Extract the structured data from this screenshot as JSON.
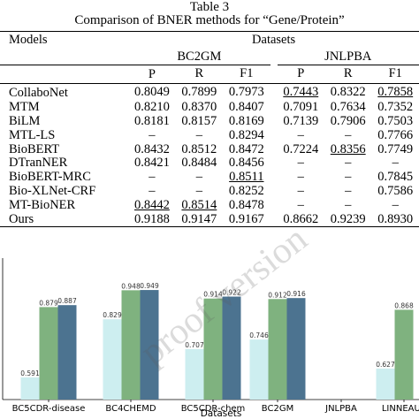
{
  "caption": {
    "number": "Table 3",
    "title": "Comparison of BNER methods for “Gene/Protein”"
  },
  "table": {
    "models_header": "Models",
    "datasets_header": "Datasets",
    "groups": [
      "BC2GM",
      "JNLPBA"
    ],
    "metrics": [
      "P",
      "R",
      "F1",
      "P",
      "R",
      "F1"
    ],
    "rows": [
      {
        "model": "CollaboNet",
        "cells": [
          "0.8049",
          "0.7899",
          "0.7973",
          "0.7443",
          "0.8322",
          "0.7858"
        ],
        "underline": [
          3,
          5
        ],
        "bold": false
      },
      {
        "model": "MTM",
        "cells": [
          "0.8210",
          "0.8370",
          "0.8407",
          "0.7091",
          "0.7634",
          "0.7352"
        ],
        "underline": [],
        "bold": false
      },
      {
        "model": "BiLM",
        "cells": [
          "0.8181",
          "0.8157",
          "0.8169",
          "0.7139",
          "0.7906",
          "0.7503"
        ],
        "underline": [],
        "bold": false
      },
      {
        "model": "MTL-LS",
        "cells": [
          "–",
          "–",
          "0.8294",
          "–",
          "–",
          "0.7766"
        ],
        "underline": [],
        "bold": false
      },
      {
        "model": "BioBERT",
        "cells": [
          "0.8432",
          "0.8512",
          "0.8472",
          "0.7224",
          "0.8356",
          "0.7749"
        ],
        "underline": [
          4
        ],
        "bold": false
      },
      {
        "model": "DTranNER",
        "cells": [
          "0.8421",
          "0.8484",
          "0.8456",
          "–",
          "–",
          "–"
        ],
        "underline": [],
        "bold": false
      },
      {
        "model": "BioBERT-MRC",
        "cells": [
          "–",
          "–",
          "0.8511",
          "–",
          "–",
          "0.7845"
        ],
        "underline": [
          2
        ],
        "bold": false
      },
      {
        "model": "Bio-XLNet-CRF",
        "cells": [
          "–",
          "–",
          "0.8252",
          "–",
          "–",
          "0.7586"
        ],
        "underline": [],
        "bold": false
      },
      {
        "model": "MT-BioNER",
        "cells": [
          "0.8442",
          "0.8514",
          "0.8478",
          "–",
          "–",
          "–"
        ],
        "underline": [
          0,
          1
        ],
        "bold": false
      },
      {
        "model": "Ours",
        "cells": [
          "0.9188",
          "0.9147",
          "0.9167",
          "0.8662",
          "0.9239",
          "0.8930"
        ],
        "underline": [],
        "bold": true
      }
    ]
  },
  "chart_data": {
    "type": "bar",
    "xlabel": "Datasets",
    "categories": [
      "BC5CDR-disease",
      "BC4CHEMD",
      "BC5CDR-chem",
      "BC2GM",
      "JNLPBA",
      "LINNEAUS"
    ],
    "series": [
      {
        "values": [
          0.591,
          0.829,
          0.707,
          0.746,
          null,
          0.627
        ],
        "color": "#cdeef0"
      },
      {
        "values": [
          0.879,
          0.948,
          0.914,
          0.912,
          null,
          0.868
        ],
        "color": "#7fb27f"
      },
      {
        "values": [
          0.887,
          0.949,
          0.922,
          0.916,
          null,
          null
        ],
        "color": "#4c7390"
      }
    ],
    "value_labels": [
      [
        "0.591",
        "0.829",
        "0.707",
        "0.746",
        "",
        "0.627"
      ],
      [
        "0.879",
        "0.948",
        "0.914",
        "0.912",
        "",
        "0.868"
      ],
      [
        "0.887",
        "0.949",
        "0.922",
        "0.916",
        "",
        ""
      ]
    ],
    "ylim": [
      0.5,
      1.0
    ]
  },
  "watermark": "proof version"
}
